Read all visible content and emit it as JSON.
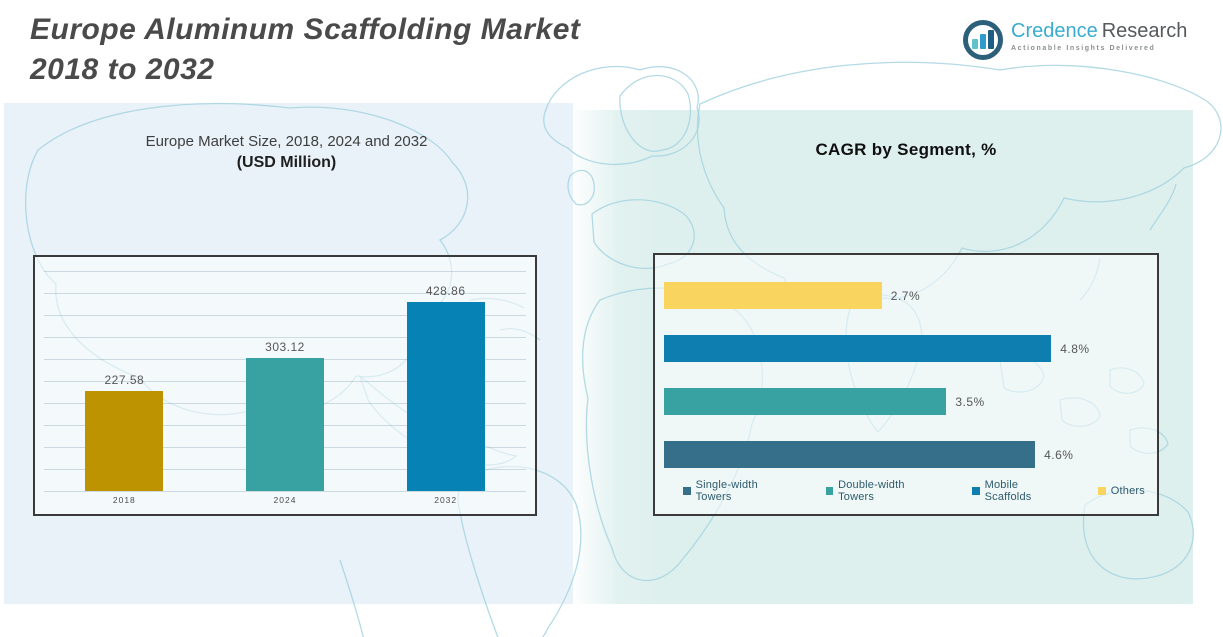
{
  "header": {
    "title_line1": "Europe Aluminum Scaffolding Market",
    "title_line2": "2018 to 2032"
  },
  "logo": {
    "brand_primary": "Credence",
    "brand_secondary": "Research",
    "tagline": "Actionable Insights Delivered",
    "colors": {
      "brand_primary": "#39ACCF",
      "brand_secondary": "#55595C",
      "icon_ring": "#2C5F7A"
    }
  },
  "left_chart": {
    "title_line1": "Europe Market Size, 2018, 2024 and 2032",
    "title_line2": "(USD Million)"
  },
  "right_chart": {
    "title": "CAGR by Segment, %"
  },
  "chart_data": [
    {
      "type": "bar",
      "title": "Europe Market Size, 2018, 2024 and 2032 (USD Million)",
      "categories": [
        "2018",
        "2024",
        "2032"
      ],
      "values": [
        227.58,
        303.12,
        428.86
      ],
      "value_labels": [
        "227.58",
        "303.12",
        "428.86"
      ],
      "bar_colors": [
        "#BD9302",
        "#38A2A2",
        "#0782B5"
      ],
      "ylim": [
        0,
        500
      ],
      "grid": true,
      "legend": false
    },
    {
      "type": "bar",
      "orientation": "horizontal",
      "title": "CAGR by Segment, %",
      "categories": [
        "Others",
        "Mobile Scaffolds",
        "Double-width Towers",
        "Single-width Towers"
      ],
      "values": [
        2.7,
        4.8,
        3.5,
        4.6
      ],
      "value_labels": [
        "2.7%",
        "4.8%",
        "3.5%",
        "4.6%"
      ],
      "bar_colors": [
        "#F9D45F",
        "#0E7EB0",
        "#38A2A2",
        "#356F89"
      ],
      "xlim": [
        0,
        6
      ],
      "grid": false,
      "legend_position": "bottom",
      "legend": [
        {
          "label": "Single-width Towers",
          "color": "#356F89"
        },
        {
          "label": "Double-width Towers",
          "color": "#38A2A2"
        },
        {
          "label": "Mobile Scaffolds",
          "color": "#0E7EB0"
        },
        {
          "label": "Others",
          "color": "#F9D45F"
        }
      ]
    }
  ]
}
